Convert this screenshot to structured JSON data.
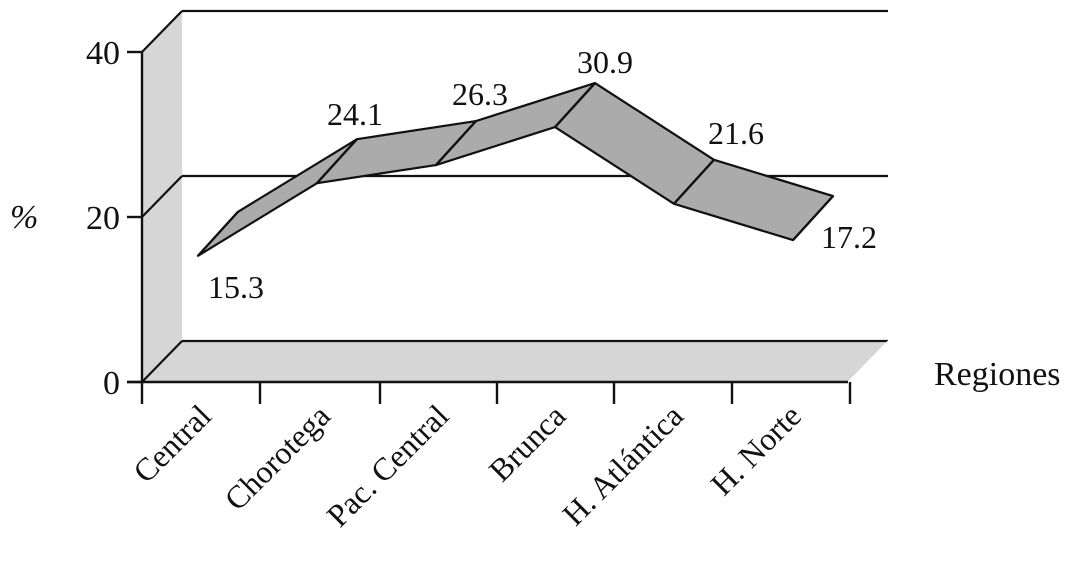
{
  "chart_data": {
    "type": "line",
    "style": "3d-ribbon",
    "categories": [
      "Central",
      "Chorotega",
      "Pac. Central",
      "Brunca",
      "H. Atlántica",
      "H. Norte"
    ],
    "series": [
      {
        "values": [
          15.3,
          24.1,
          26.3,
          30.9,
          21.6,
          17.2
        ]
      }
    ],
    "value_labels": [
      "15.3",
      "24.1",
      "26.3",
      "30.9",
      "21.6",
      "17.2"
    ],
    "ylabel": "%",
    "xlabel": "Regiones",
    "ylim": [
      0,
      40
    ],
    "yticks": [
      "0",
      "20",
      "40"
    ],
    "grid": true,
    "colors": {
      "ribbon": "#ababab",
      "walls": "#d6d6d6",
      "lines": "#111111"
    }
  }
}
